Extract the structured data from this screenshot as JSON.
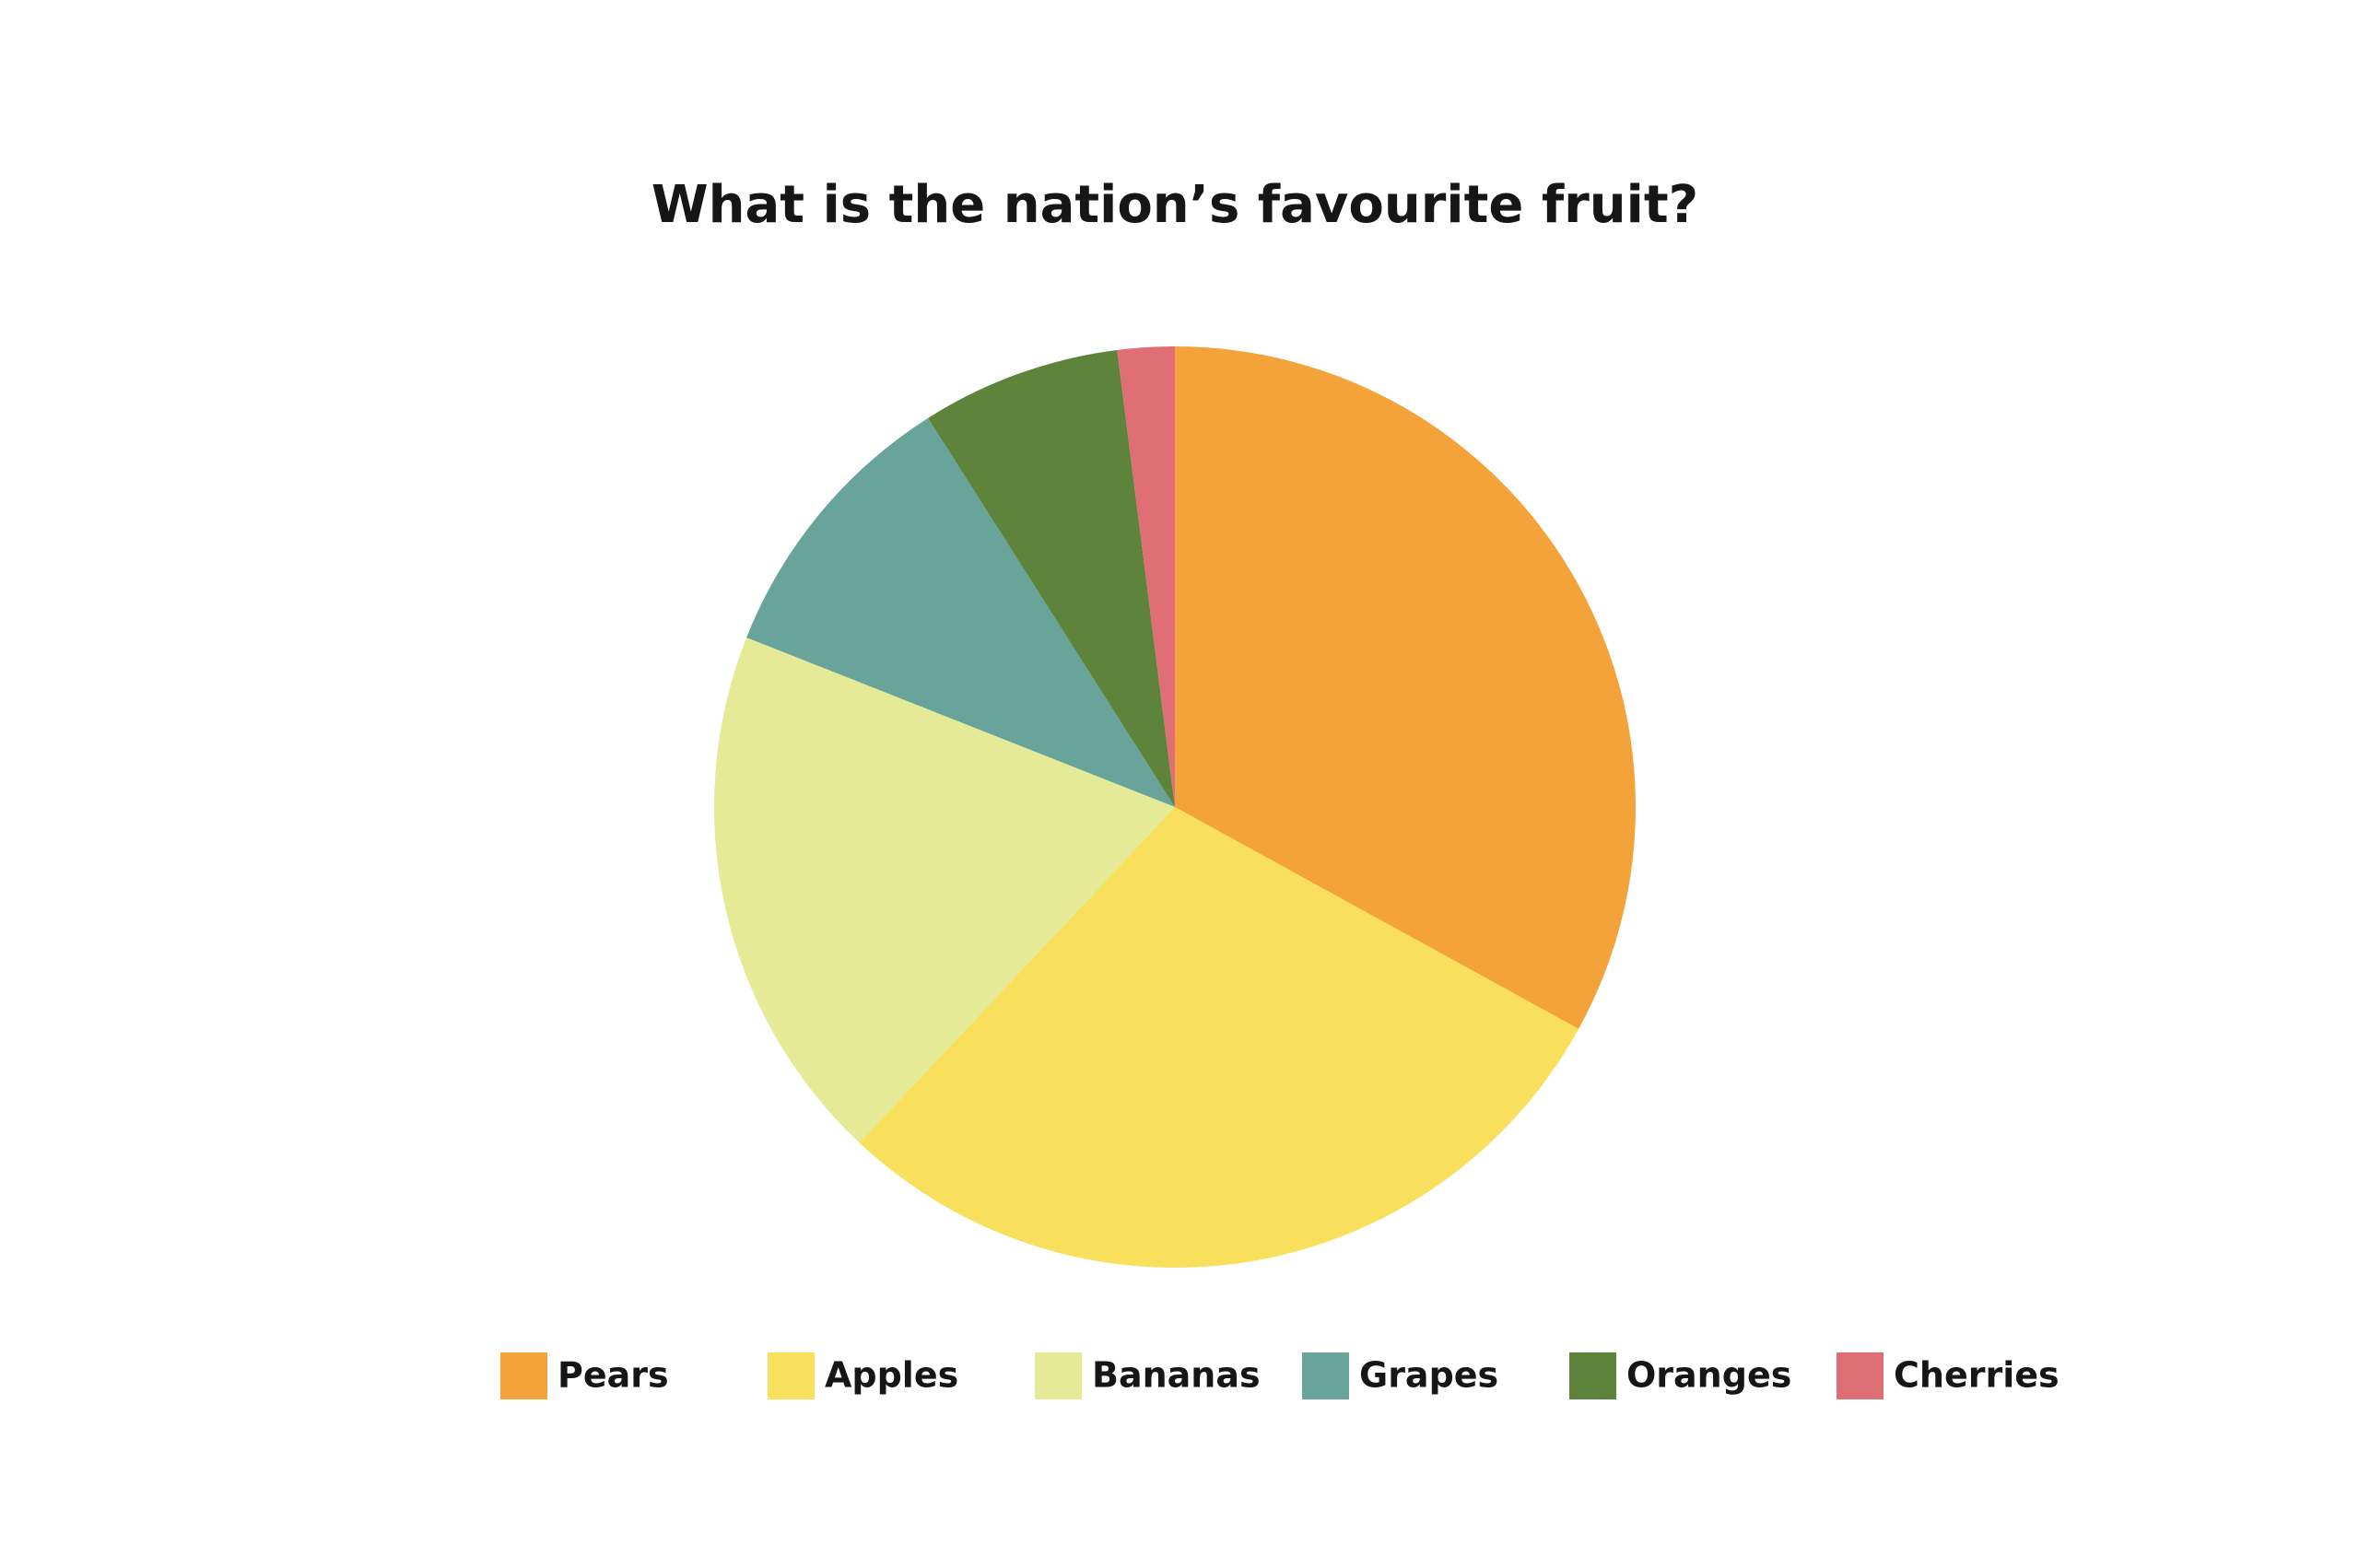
{
  "chart_data": {
    "type": "pie",
    "title": "What is the nation’s favourite fruit?",
    "categories": [
      "Pears",
      "Apples",
      "Bananas",
      "Grapes",
      "Oranges",
      "Cherries"
    ],
    "values": [
      33,
      29,
      19,
      10,
      7,
      2
    ],
    "colors": [
      "#f4a23a",
      "#f8df5c",
      "#e4ea96",
      "#68a49a",
      "#5e833b",
      "#df6e75"
    ],
    "legend": "bottom"
  }
}
